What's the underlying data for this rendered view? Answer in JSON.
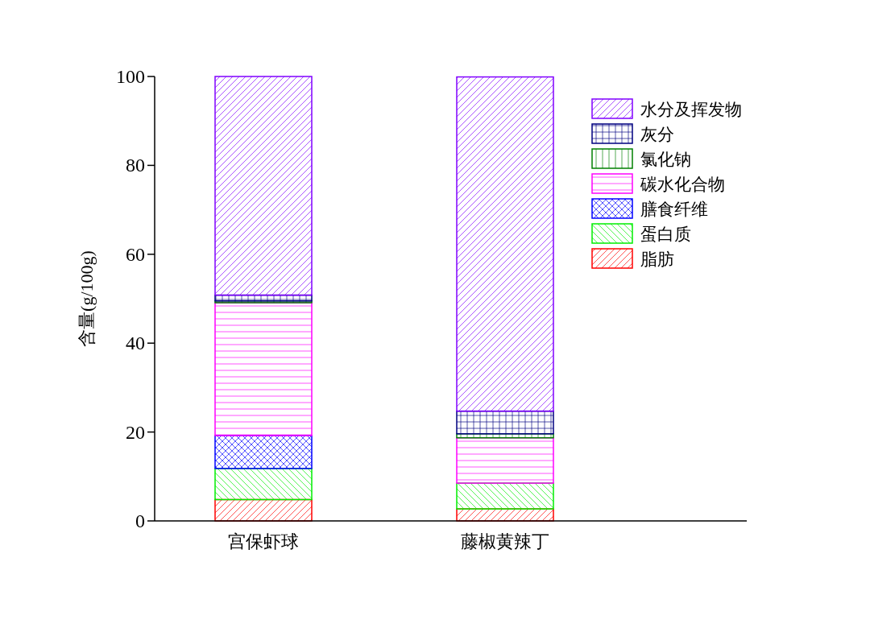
{
  "chart_data": {
    "type": "bar",
    "stacked": true,
    "ylabel": "含量(g/100g)",
    "categories": [
      "宫保虾球",
      "藤椒黄辣丁"
    ],
    "ylim": [
      0,
      100
    ],
    "yticks": [
      0,
      20,
      40,
      60,
      80,
      100
    ],
    "legend": "top right",
    "grid": false,
    "series": [
      {
        "name": "脂肪",
        "color": "#ff0000",
        "values": [
          4.8,
          2.7
        ]
      },
      {
        "name": "蛋白质",
        "color": "#00ee00",
        "values": [
          7.0,
          5.8
        ]
      },
      {
        "name": "膳食纤维",
        "color": "#0000ff",
        "values": [
          7.4,
          null
        ]
      },
      {
        "name": "碳水化合物",
        "color": "#ff00ff",
        "values": [
          29.9,
          10.2
        ]
      },
      {
        "name": "氯化钠",
        "color": "#008000",
        "values": [
          0.4,
          0.9
        ]
      },
      {
        "name": "灰分",
        "color": "#000080",
        "values": [
          1.3,
          5.1
        ]
      },
      {
        "name": "水分及挥发物",
        "color": "#8000ff",
        "values": [
          49.2,
          75.2
        ]
      }
    ]
  }
}
